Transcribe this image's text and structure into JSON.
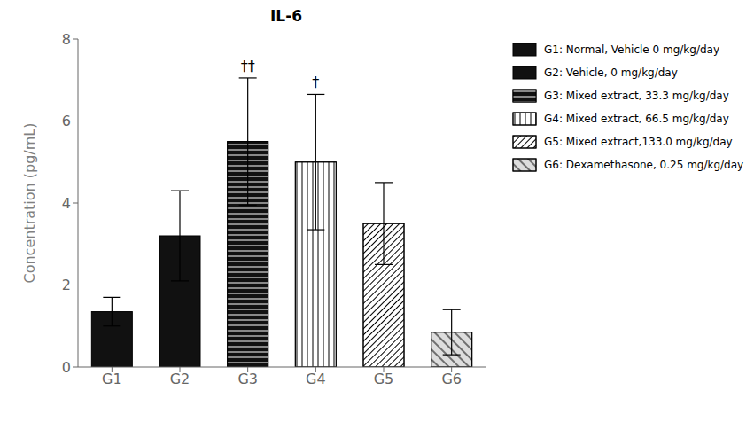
{
  "chart_data": {
    "type": "bar",
    "title": "IL-6",
    "ylabel": "Concentration (pg/mL)",
    "categories": [
      "G1",
      "G2",
      "G3",
      "G4",
      "G5",
      "G6"
    ],
    "values": [
      1.35,
      3.2,
      5.5,
      5.0,
      3.5,
      0.85
    ],
    "errors": [
      0.35,
      1.1,
      1.55,
      1.65,
      1.0,
      0.55
    ],
    "colors": [
      "#111111",
      "#111111",
      "#111111",
      "#ffffff",
      "#ffffff",
      "#dddddd"
    ],
    "ylim": [
      0,
      8
    ],
    "yticks": [
      0,
      2,
      4,
      6,
      8
    ],
    "annotations": [
      {
        "category": "G3",
        "text": "††"
      },
      {
        "category": "G4",
        "text": "†"
      }
    ],
    "legend_labels": [
      "G1: Normal, Vehicle 0 mg/kg/day",
      "G2: Vehicle, 0 mg/kg/day",
      "G3: Mixed extract, 33.3 mg/kg/day",
      "G4: Mixed extract, 66.5 mg/kg/day",
      "G5: Mixed extract,133.0 mg/kg/day",
      "G6: Dexamethasone, 0.25 mg/kg/day"
    ],
    "legend": "right",
    "grid": false
  }
}
